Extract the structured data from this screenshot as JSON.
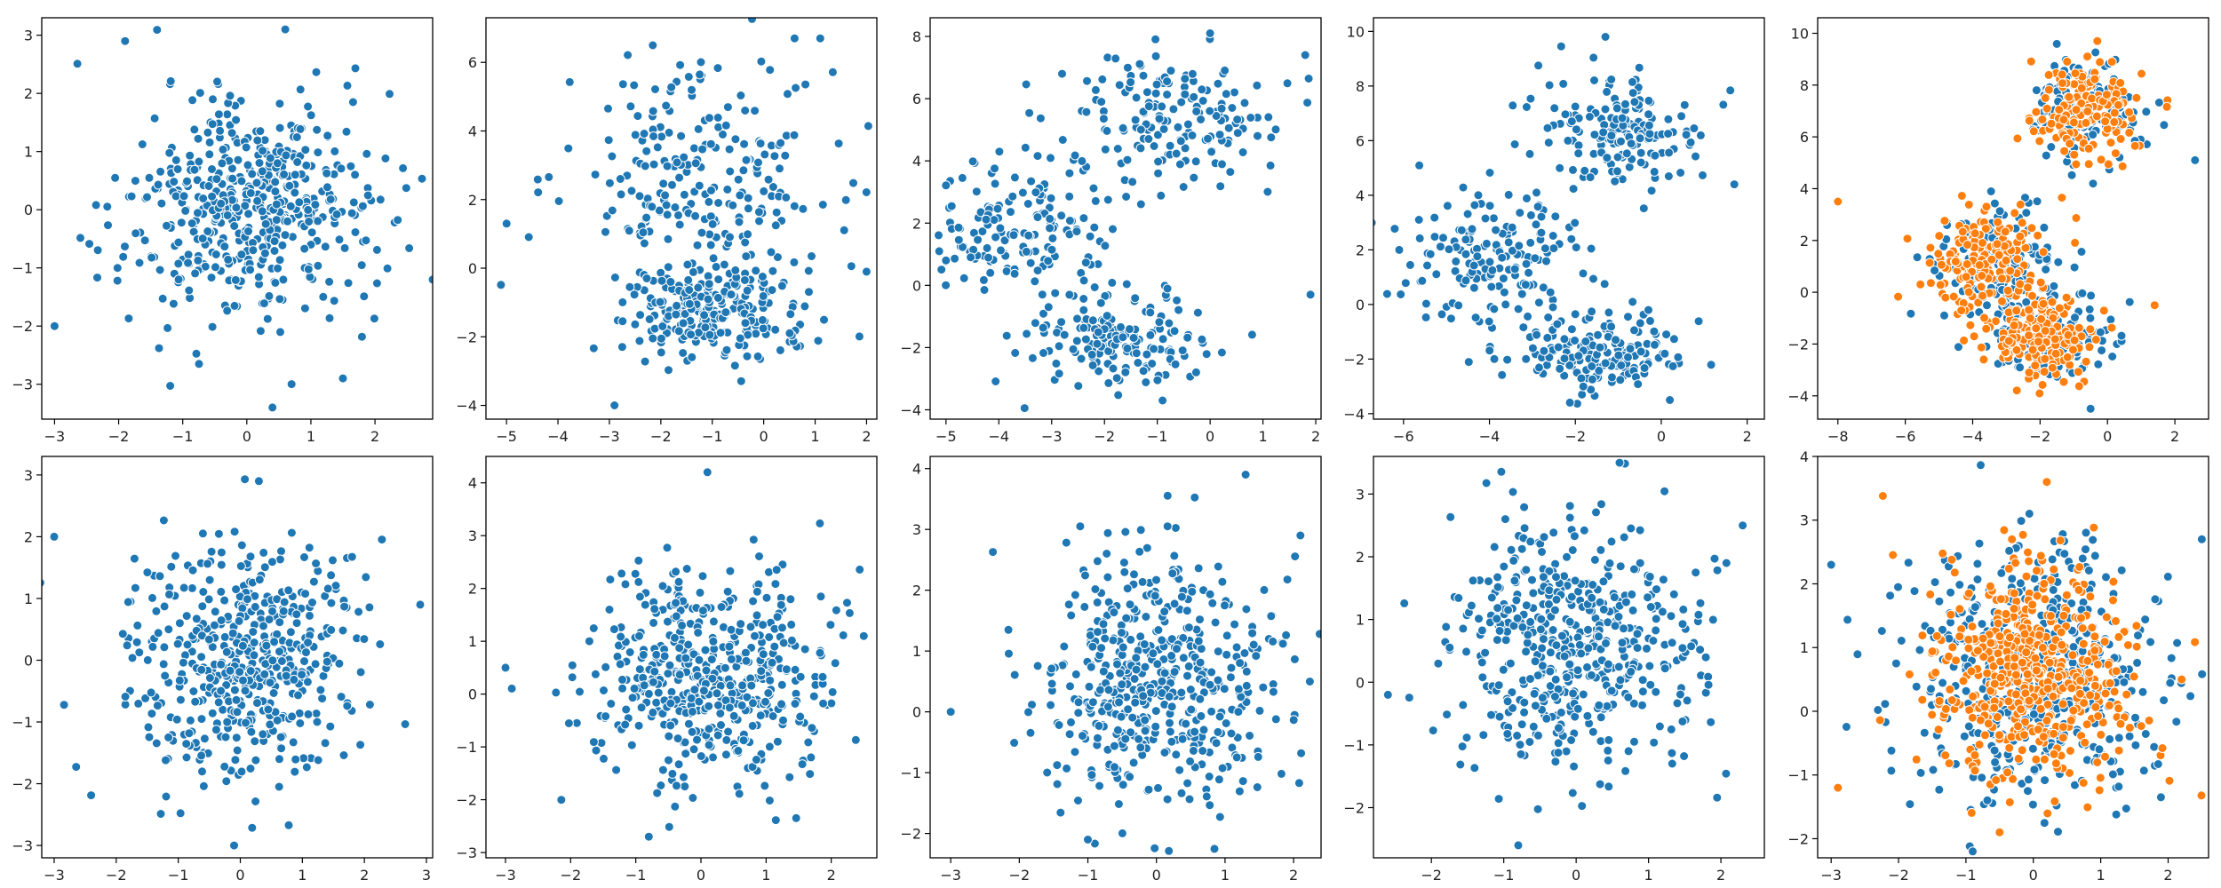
{
  "figure": {
    "rows": 2,
    "cols": 5
  },
  "colors": {
    "series1": "#1f77b4",
    "series2": "#ff7f0e",
    "axis": "#000000",
    "marker_edge": "#ffffff"
  },
  "chart_data": [
    {
      "panel": 1,
      "type": "scatter",
      "title": "",
      "xlabel": "",
      "ylabel": "",
      "grid": false,
      "legend": false,
      "xlim": [
        -3.2,
        2.9
      ],
      "ylim": [
        -3.6,
        3.3
      ],
      "xticks": [
        "-3",
        "-2",
        "-1",
        "0",
        "1",
        "2"
      ],
      "yticks": [
        "-3",
        "-2",
        "-1",
        "0",
        "1",
        "2",
        "3"
      ],
      "series": [
        {
          "color": "#1f77b4",
          "n_points": 500,
          "clusters": [
            {
              "center": [
                0,
                0
              ],
              "spread": [
                0.95,
                0.95
              ]
            }
          ],
          "sample_points": [
            [
              -3.0,
              -2.0
            ],
            [
              -1.9,
              2.9
            ],
            [
              0.6,
              3.1
            ],
            [
              1.5,
              -2.9
            ],
            [
              0.4,
              -3.4
            ],
            [
              2.9,
              -1.2
            ]
          ]
        }
      ]
    },
    {
      "panel": 2,
      "type": "scatter",
      "title": "",
      "xlabel": "",
      "ylabel": "",
      "grid": false,
      "legend": false,
      "xlim": [
        -5.4,
        2.2
      ],
      "ylim": [
        -4.4,
        7.3
      ],
      "xticks": [
        "-5",
        "-4",
        "-3",
        "-2",
        "-1",
        "0",
        "1",
        "2"
      ],
      "yticks": [
        "-4",
        "-2",
        "0",
        "2",
        "4",
        "6"
      ],
      "series": [
        {
          "color": "#1f77b4",
          "n_points": 500,
          "clusters": [
            {
              "center": [
                -1.0,
                -1.4
              ],
              "spread": [
                0.9,
                0.7
              ]
            },
            {
              "center": [
                -1.2,
                2.5
              ],
              "spread": [
                1.3,
                1.9
              ]
            }
          ],
          "sample_points": [
            [
              0.6,
              6.7
            ],
            [
              1.1,
              6.7
            ],
            [
              -2.9,
              -4.0
            ],
            [
              -5.0,
              1.3
            ],
            [
              2.0,
              -0.1
            ]
          ]
        }
      ]
    },
    {
      "panel": 3,
      "type": "scatter",
      "title": "",
      "xlabel": "",
      "ylabel": "",
      "grid": false,
      "legend": false,
      "xlim": [
        -5.3,
        2.1
      ],
      "ylim": [
        -4.3,
        8.6
      ],
      "xticks": [
        "-5",
        "-4",
        "-3",
        "-2",
        "-1",
        "0",
        "1",
        "2"
      ],
      "yticks": [
        "-4",
        "-2",
        "0",
        "2",
        "4",
        "6",
        "8"
      ],
      "series": [
        {
          "color": "#1f77b4",
          "n_points": 500,
          "clusters": [
            {
              "center": [
                -1.7,
                -1.7
              ],
              "spread": [
                0.9,
                0.7
              ]
            },
            {
              "center": [
                -3.5,
                1.8
              ],
              "spread": [
                0.9,
                1.2
              ]
            },
            {
              "center": [
                -0.6,
                5.5
              ],
              "spread": [
                1.0,
                1.1
              ]
            }
          ],
          "sample_points": [
            [
              0.0,
              8.1
            ],
            [
              1.8,
              7.4
            ],
            [
              1.9,
              -0.3
            ],
            [
              -5.0,
              0.8
            ],
            [
              -0.9,
              -3.7
            ]
          ]
        }
      ]
    },
    {
      "panel": 4,
      "type": "scatter",
      "title": "",
      "xlabel": "",
      "ylabel": "",
      "grid": false,
      "legend": false,
      "xlim": [
        -6.7,
        2.4
      ],
      "ylim": [
        -4.2,
        10.5
      ],
      "xticks": [
        "-6",
        "-4",
        "-2",
        "0",
        "2"
      ],
      "yticks": [
        "-4",
        "-2",
        "0",
        "2",
        "4",
        "6",
        "8",
        "10"
      ],
      "series": [
        {
          "color": "#1f77b4",
          "n_points": 500,
          "clusters": [
            {
              "center": [
                -1.5,
                -1.8
              ],
              "spread": [
                1.0,
                0.75
              ]
            },
            {
              "center": [
                -3.8,
                1.5
              ],
              "spread": [
                1.1,
                1.2
              ]
            },
            {
              "center": [
                -0.9,
                6.4
              ],
              "spread": [
                1.0,
                1.0
              ]
            }
          ],
          "sample_points": [
            [
              -1.3,
              9.8
            ],
            [
              -6.1,
              2.0
            ],
            [
              1.7,
              4.4
            ],
            [
              0.2,
              -3.5
            ]
          ]
        }
      ]
    },
    {
      "panel": 5,
      "type": "scatter",
      "title": "",
      "xlabel": "",
      "ylabel": "",
      "grid": false,
      "legend": false,
      "xlim": [
        -8.6,
        3.0
      ],
      "ylim": [
        -4.9,
        10.6
      ],
      "xticks": [
        "-8",
        "-6",
        "-4",
        "-2",
        "0",
        "2"
      ],
      "yticks": [
        "-4",
        "-2",
        "0",
        "2",
        "4",
        "6",
        "8",
        "10"
      ],
      "series": [
        {
          "color": "#1f77b4",
          "n_points": 500,
          "clusters": [
            {
              "center": [
                -1.7,
                -1.8
              ],
              "spread": [
                0.8,
                0.7
              ]
            },
            {
              "center": [
                -3.4,
                1.2
              ],
              "spread": [
                0.9,
                1.1
              ]
            },
            {
              "center": [
                -0.6,
                7.0
              ],
              "spread": [
                0.8,
                0.9
              ]
            }
          ],
          "sample_points": [
            [
              2.6,
              5.1
            ],
            [
              -0.5,
              -4.5
            ]
          ]
        },
        {
          "color": "#ff7f0e",
          "n_points": 500,
          "clusters": [
            {
              "center": [
                -1.9,
                -1.8
              ],
              "spread": [
                0.8,
                0.7
              ]
            },
            {
              "center": [
                -3.6,
                1.2
              ],
              "spread": [
                0.9,
                1.1
              ]
            },
            {
              "center": [
                -0.6,
                7.0
              ],
              "spread": [
                0.8,
                0.9
              ]
            }
          ],
          "sample_points": [
            [
              -8.0,
              3.5
            ],
            [
              -0.3,
              9.7
            ],
            [
              1.4,
              -0.5
            ]
          ]
        }
      ]
    },
    {
      "panel": 6,
      "type": "scatter",
      "title": "",
      "xlabel": "",
      "ylabel": "",
      "grid": false,
      "legend": false,
      "xlim": [
        -3.2,
        3.1
      ],
      "ylim": [
        -3.2,
        3.3
      ],
      "xticks": [
        "-3",
        "-2",
        "-1",
        "0",
        "1",
        "2",
        "3"
      ],
      "yticks": [
        "-3",
        "-2",
        "-1",
        "0",
        "1",
        "2",
        "3"
      ],
      "series": [
        {
          "color": "#1f77b4",
          "n_points": 500,
          "clusters": [
            {
              "center": [
                0,
                0
              ],
              "spread": [
                0.95,
                0.95
              ]
            }
          ],
          "sample_points": [
            [
              -3.0,
              2.0
            ],
            [
              0.3,
              2.9
            ],
            [
              -0.1,
              -3.0
            ],
            [
              2.9,
              0.9
            ]
          ]
        }
      ]
    },
    {
      "panel": 7,
      "type": "scatter",
      "title": "",
      "xlabel": "",
      "ylabel": "",
      "grid": false,
      "legend": false,
      "xlim": [
        -3.3,
        2.7
      ],
      "ylim": [
        -3.1,
        4.5
      ],
      "xticks": [
        "-3",
        "-2",
        "-1",
        "0",
        "1",
        "2"
      ],
      "yticks": [
        "-3",
        "-2",
        "-1",
        "0",
        "1",
        "2",
        "3",
        "4"
      ],
      "series": [
        {
          "color": "#1f77b4",
          "n_points": 500,
          "clusters": [
            {
              "center": [
                0.1,
                0.3
              ],
              "spread": [
                0.9,
                1.0
              ]
            }
          ],
          "sample_points": [
            [
              0.1,
              4.2
            ],
            [
              -3.0,
              0.5
            ],
            [
              2.5,
              1.1
            ],
            [
              -0.8,
              -2.7
            ]
          ]
        }
      ]
    },
    {
      "panel": 8,
      "type": "scatter",
      "title": "",
      "xlabel": "",
      "ylabel": "",
      "grid": false,
      "legend": false,
      "xlim": [
        -3.3,
        2.4
      ],
      "ylim": [
        -2.4,
        4.2
      ],
      "xticks": [
        "-3",
        "-2",
        "-1",
        "0",
        "1",
        "2"
      ],
      "yticks": [
        "-2",
        "-1",
        "0",
        "1",
        "2",
        "3",
        "4"
      ],
      "series": [
        {
          "color": "#1f77b4",
          "n_points": 500,
          "clusters": [
            {
              "center": [
                0.1,
                0.5
              ],
              "spread": [
                0.9,
                1.0
              ]
            }
          ],
          "sample_points": [
            [
              -3.0,
              0.0
            ],
            [
              1.3,
              3.9
            ],
            [
              -1.0,
              -2.1
            ],
            [
              2.1,
              2.9
            ]
          ]
        }
      ]
    },
    {
      "panel": 9,
      "type": "scatter",
      "title": "",
      "xlabel": "",
      "ylabel": "",
      "grid": false,
      "legend": false,
      "xlim": [
        -2.8,
        2.6
      ],
      "ylim": [
        -2.8,
        3.6
      ],
      "xticks": [
        "-2",
        "-1",
        "0",
        "1",
        "2"
      ],
      "yticks": [
        "-2",
        "-1",
        "0",
        "1",
        "2",
        "3"
      ],
      "series": [
        {
          "color": "#1f77b4",
          "n_points": 500,
          "clusters": [
            {
              "center": [
                0.0,
                0.6
              ],
              "spread": [
                0.9,
                1.0
              ]
            }
          ],
          "sample_points": [
            [
              -2.6,
              -0.2
            ],
            [
              0.6,
              3.5
            ],
            [
              -0.8,
              -2.6
            ],
            [
              2.3,
              2.5
            ]
          ]
        }
      ]
    },
    {
      "panel": 10,
      "type": "scatter",
      "title": "",
      "xlabel": "",
      "ylabel": "",
      "grid": false,
      "legend": false,
      "xlim": [
        -3.2,
        2.6
      ],
      "ylim": [
        -2.3,
        4.0
      ],
      "xticks": [
        "-3",
        "-2",
        "-1",
        "0",
        "1",
        "2"
      ],
      "yticks": [
        "-2",
        "-1",
        "0",
        "1",
        "2",
        "3",
        "4"
      ],
      "series": [
        {
          "color": "#1f77b4",
          "n_points": 500,
          "clusters": [
            {
              "center": [
                0.0,
                0.6
              ],
              "spread": [
                0.9,
                1.0
              ]
            }
          ],
          "sample_points": [
            [
              -3.0,
              2.3
            ],
            [
              2.5,
              2.7
            ],
            [
              -0.9,
              -2.2
            ]
          ]
        },
        {
          "color": "#ff7f0e",
          "n_points": 500,
          "clusters": [
            {
              "center": [
                0.0,
                0.6
              ],
              "spread": [
                0.75,
                0.85
              ]
            }
          ],
          "sample_points": [
            [
              -2.9,
              -1.2
            ],
            [
              0.2,
              3.6
            ],
            [
              -0.5,
              -1.9
            ],
            [
              2.2,
              0.5
            ]
          ]
        }
      ]
    }
  ]
}
